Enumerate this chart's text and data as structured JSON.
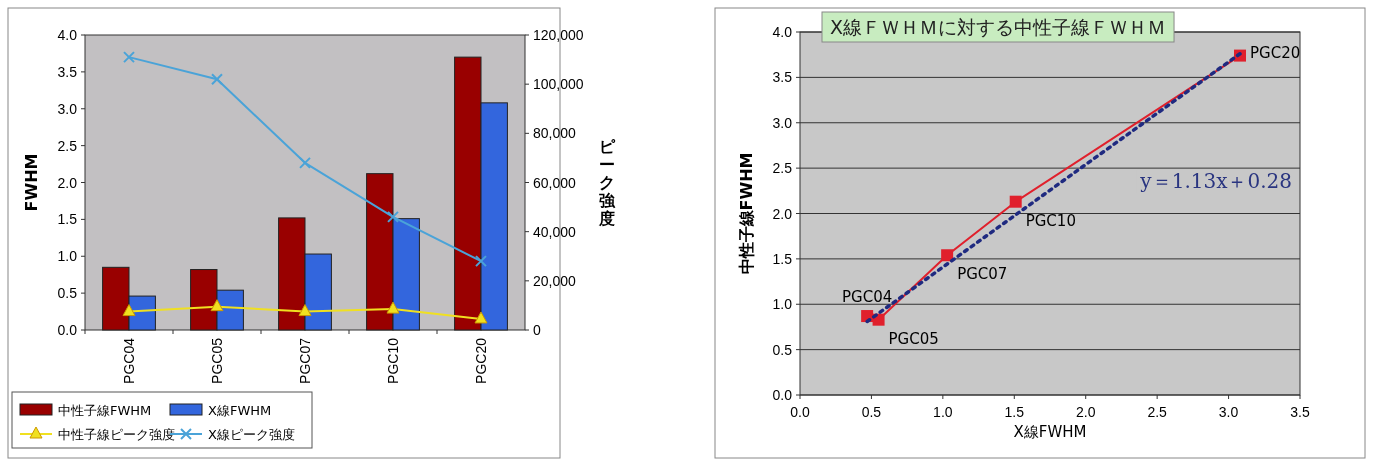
{
  "chart_data": [
    {
      "type": "bar",
      "categories": [
        "PGC04",
        "PGC05",
        "PGC07",
        "PGC10",
        "PGC20"
      ],
      "ylabel": "FWHM",
      "y2label": "ピーク強度",
      "ylim": [
        0,
        4
      ],
      "yticks": [
        {
          "value": 0,
          "label": "0.0"
        },
        {
          "value": 0.5,
          "label": "0.5"
        },
        {
          "value": 1,
          "label": "1.0"
        },
        {
          "value": 1.5,
          "label": "1.5"
        },
        {
          "value": 2,
          "label": "2.0"
        },
        {
          "value": 2.5,
          "label": "2.5"
        },
        {
          "value": 3,
          "label": "3.0"
        },
        {
          "value": 3.5,
          "label": "3.5"
        },
        {
          "value": 4,
          "label": "4.0"
        }
      ],
      "y2lim": [
        0,
        120000
      ],
      "y2ticks": [
        {
          "value": 0,
          "label": "0"
        },
        {
          "value": 20000,
          "label": "20,000"
        },
        {
          "value": 40000,
          "label": "40,000"
        },
        {
          "value": 60000,
          "label": "60,000"
        },
        {
          "value": 80000,
          "label": "80,000"
        },
        {
          "value": 100000,
          "label": "100,000"
        },
        {
          "value": 120000,
          "label": "120,000"
        }
      ],
      "legend": "bottom",
      "series": [
        {
          "name": "中性子線FWHM",
          "color": "#990000",
          "values": [
            0.85,
            0.82,
            1.52,
            2.12,
            3.7
          ]
        },
        {
          "name": "X線FWHM",
          "color": "#3366dd",
          "values": [
            0.46,
            0.54,
            1.03,
            1.51,
            3.08
          ]
        },
        {
          "name": "中性子線ピーク強度",
          "type": "line",
          "axis": "y2",
          "marker": "triangle",
          "color": "#f0e020",
          "values": [
            7500,
            9500,
            7500,
            8500,
            4500
          ]
        },
        {
          "name": "X線ピーク強度",
          "type": "line",
          "axis": "y2",
          "marker": "cross",
          "color": "#4aa3d8",
          "values": [
            111000,
            102000,
            68000,
            46000,
            28000
          ]
        }
      ]
    },
    {
      "type": "line",
      "title": "X線ＦＷＨＭに対する中性子線ＦＷＨＭ",
      "xlabel": "X線FWHM",
      "ylabel": "中性子線FWHM",
      "xlim": [
        0,
        3.5
      ],
      "xticks": [
        {
          "value": 0,
          "label": "0.0"
        },
        {
          "value": 0.5,
          "label": "0.5"
        },
        {
          "value": 1,
          "label": "1.0"
        },
        {
          "value": 1.5,
          "label": "1.5"
        },
        {
          "value": 2,
          "label": "2.0"
        },
        {
          "value": 2.5,
          "label": "2.5"
        },
        {
          "value": 3,
          "label": "3.0"
        },
        {
          "value": 3.5,
          "label": "3.5"
        }
      ],
      "ylim": [
        0,
        4
      ],
      "yticks": [
        {
          "value": 0,
          "label": "0.0"
        },
        {
          "value": 0.5,
          "label": "0.5"
        },
        {
          "value": 1,
          "label": "1.0"
        },
        {
          "value": 1.5,
          "label": "1.5"
        },
        {
          "value": 2,
          "label": "2.0"
        },
        {
          "value": 2.5,
          "label": "2.5"
        },
        {
          "value": 3,
          "label": "3.0"
        },
        {
          "value": 3.5,
          "label": "3.5"
        },
        {
          "value": 4,
          "label": "4.0"
        }
      ],
      "grid": "y",
      "series": [
        {
          "marker": "square",
          "color": "#e0202c",
          "x": [
            0.47,
            0.55,
            1.03,
            1.51,
            3.08
          ],
          "values": [
            0.87,
            0.83,
            1.54,
            2.13,
            3.74
          ]
        },
        {
          "marker": "none",
          "line_style": "dotted",
          "color": "#1f2a80",
          "x": [
            0.47,
            3.08
          ],
          "values": [
            0.81,
            3.76
          ]
        }
      ],
      "annotations": [
        {
          "text": "PGC04",
          "x": 0.47,
          "y": 0.87
        },
        {
          "text": "PGC05",
          "x": 0.55,
          "y": 0.83
        },
        {
          "text": "PGC07",
          "x": 1.03,
          "y": 1.54
        },
        {
          "text": "PGC10",
          "x": 1.51,
          "y": 2.13
        },
        {
          "text": "PGC20",
          "x": 3.08,
          "y": 3.74
        },
        "y＝1.13x＋0.28"
      ]
    }
  ]
}
